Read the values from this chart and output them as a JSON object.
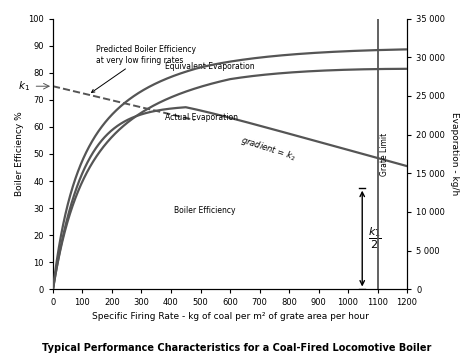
{
  "title": "Typical Performance Characteristics for a Coal-Fired Locomotive Boiler",
  "xlabel": "Specific Firing Rate - kg of coal per m² of grate area per hour",
  "ylabel_left": "Boiler Efficiency %",
  "ylabel_right": "Evaporation - kg/h",
  "xlim": [
    0,
    1200
  ],
  "ylim_left": [
    0,
    100
  ],
  "ylim_right": [
    0,
    35000
  ],
  "x_ticks": [
    0,
    100,
    200,
    300,
    400,
    500,
    600,
    700,
    800,
    900,
    1000,
    1100,
    1200
  ],
  "y_ticks_left": [
    0,
    10,
    20,
    30,
    40,
    50,
    60,
    70,
    80,
    90,
    100
  ],
  "y_ticks_right": [
    0,
    5000,
    10000,
    15000,
    20000,
    25000,
    30000,
    35000
  ],
  "y_tick_labels_right": [
    "0",
    "5 000",
    "10 000",
    "15 000",
    "20 000",
    "25 000",
    "30 000",
    "35 000"
  ],
  "grate_limit_x": 1100,
  "k1_y": 75,
  "curve_color": "#555555",
  "background_color": "#ffffff",
  "fig_width": 4.74,
  "fig_height": 3.57,
  "dpi": 100
}
